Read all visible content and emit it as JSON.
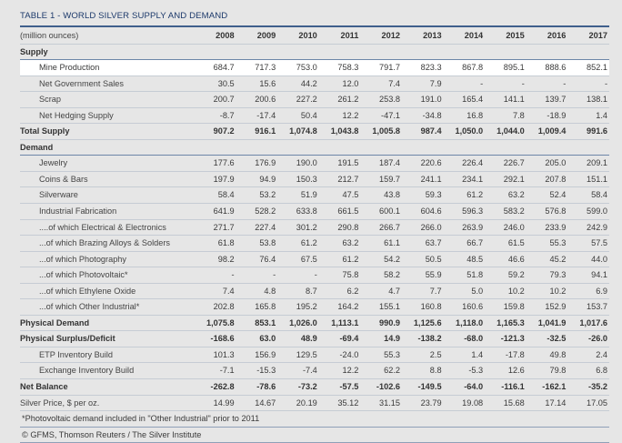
{
  "title": "TABLE 1 - WORLD SILVER SUPPLY AND DEMAND",
  "header": {
    "label": "(million ounces)",
    "years": [
      "2008",
      "2009",
      "2010",
      "2011",
      "2012",
      "2013",
      "2014",
      "2015",
      "2016",
      "2017"
    ]
  },
  "rows": [
    {
      "label": "Supply",
      "type": "sec",
      "values": []
    },
    {
      "label": "Mine Production",
      "type": "hi",
      "indent": true,
      "values": [
        "684.7",
        "717.3",
        "753.0",
        "758.3",
        "791.7",
        "823.3",
        "867.8",
        "895.1",
        "888.6",
        "852.1"
      ]
    },
    {
      "label": "Net Government Sales",
      "type": "plain",
      "indent": true,
      "values": [
        "30.5",
        "15.6",
        "44.2",
        "12.0",
        "7.4",
        "7.9",
        "-",
        "-",
        "-",
        "-"
      ]
    },
    {
      "label": "Scrap",
      "type": "plain",
      "indent": true,
      "values": [
        "200.7",
        "200.6",
        "227.2",
        "261.2",
        "253.8",
        "191.0",
        "165.4",
        "141.1",
        "139.7",
        "138.1"
      ]
    },
    {
      "label": "Net Hedging Supply",
      "type": "plain",
      "indent": true,
      "values": [
        "-8.7",
        "-17.4",
        "50.4",
        "12.2",
        "-47.1",
        "-34.8",
        "16.8",
        "7.8",
        "-18.9",
        "1.4"
      ]
    },
    {
      "label": "Total Supply",
      "type": "bold",
      "values": [
        "907.2",
        "916.1",
        "1,074.8",
        "1,043.8",
        "1,005.8",
        "987.4",
        "1,050.0",
        "1,044.0",
        "1,009.4",
        "991.6"
      ]
    },
    {
      "label": "Demand",
      "type": "sec",
      "values": []
    },
    {
      "label": "Jewelry",
      "type": "plain",
      "indent": true,
      "values": [
        "177.6",
        "176.9",
        "190.0",
        "191.5",
        "187.4",
        "220.6",
        "226.4",
        "226.7",
        "205.0",
        "209.1"
      ]
    },
    {
      "label": "Coins & Bars",
      "type": "plain",
      "indent": true,
      "values": [
        "197.9",
        "94.9",
        "150.3",
        "212.7",
        "159.7",
        "241.1",
        "234.1",
        "292.1",
        "207.8",
        "151.1"
      ]
    },
    {
      "label": "Silverware",
      "type": "plain",
      "indent": true,
      "values": [
        "58.4",
        "53.2",
        "51.9",
        "47.5",
        "43.8",
        "59.3",
        "61.2",
        "63.2",
        "52.4",
        "58.4"
      ]
    },
    {
      "label": "Industrial Fabrication",
      "type": "plain",
      "indent": true,
      "values": [
        "641.9",
        "528.2",
        "633.8",
        "661.5",
        "600.1",
        "604.6",
        "596.3",
        "583.2",
        "576.8",
        "599.0"
      ]
    },
    {
      "label": "....of which Electrical & Electronics",
      "type": "plain",
      "indent": true,
      "values": [
        "271.7",
        "227.4",
        "301.2",
        "290.8",
        "266.7",
        "266.0",
        "263.9",
        "246.0",
        "233.9",
        "242.9"
      ]
    },
    {
      "label": "...of which Brazing Alloys & Solders",
      "type": "plain",
      "indent": true,
      "values": [
        "61.8",
        "53.8",
        "61.2",
        "63.2",
        "61.1",
        "63.7",
        "66.7",
        "61.5",
        "55.3",
        "57.5"
      ]
    },
    {
      "label": "...of which Photography",
      "type": "plain",
      "indent": true,
      "values": [
        "98.2",
        "76.4",
        "67.5",
        "61.2",
        "54.2",
        "50.5",
        "48.5",
        "46.6",
        "45.2",
        "44.0"
      ]
    },
    {
      "label": "...of which Photovoltaic*",
      "type": "plain",
      "indent": true,
      "values": [
        "-",
        "-",
        "-",
        "75.8",
        "58.2",
        "55.9",
        "51.8",
        "59.2",
        "79.3",
        "94.1"
      ]
    },
    {
      "label": "...of which Ethylene Oxide",
      "type": "plain",
      "indent": true,
      "values": [
        "7.4",
        "4.8",
        "8.7",
        "6.2",
        "4.7",
        "7.7",
        "5.0",
        "10.2",
        "10.2",
        "6.9"
      ]
    },
    {
      "label": "...of which Other Industrial*",
      "type": "plain",
      "indent": true,
      "values": [
        "202.8",
        "165.8",
        "195.2",
        "164.2",
        "155.1",
        "160.8",
        "160.6",
        "159.8",
        "152.9",
        "153.7"
      ]
    },
    {
      "label": "Physical Demand",
      "type": "bold",
      "values": [
        "1,075.8",
        "853.1",
        "1,026.0",
        "1,113.1",
        "990.9",
        "1,125.6",
        "1,118.0",
        "1,165.3",
        "1,041.9",
        "1,017.6"
      ]
    },
    {
      "label": "Physical Surplus/Deficit",
      "type": "bold",
      "values": [
        "-168.6",
        "63.0",
        "48.9",
        "-69.4",
        "14.9",
        "-138.2",
        "-68.0",
        "-121.3",
        "-32.5",
        "-26.0"
      ]
    },
    {
      "label": "ETP Inventory Build",
      "type": "plain",
      "indent": true,
      "values": [
        "101.3",
        "156.9",
        "129.5",
        "-24.0",
        "55.3",
        "2.5",
        "1.4",
        "-17.8",
        "49.8",
        "2.4"
      ]
    },
    {
      "label": "Exchange Inventory Build",
      "type": "plain",
      "indent": true,
      "values": [
        "-7.1",
        "-15.3",
        "-7.4",
        "12.2",
        "62.2",
        "8.8",
        "-5.3",
        "12.6",
        "79.8",
        "6.8"
      ]
    },
    {
      "label": "Net Balance",
      "type": "bold",
      "values": [
        "-262.8",
        "-78.6",
        "-73.2",
        "-57.5",
        "-102.6",
        "-149.5",
        "-64.0",
        "-116.1",
        "-162.1",
        "-35.2"
      ]
    },
    {
      "label": "Silver Price, $ per oz.",
      "type": "plain",
      "values": [
        "14.99",
        "14.67",
        "20.19",
        "35.12",
        "31.15",
        "23.79",
        "19.08",
        "15.68",
        "17.14",
        "17.05"
      ]
    }
  ],
  "footnote": "*Photovoltaic demand included in \"Other Industrial\" prior to 2011",
  "source": "© GFMS, Thomson Reuters / The Silver Institute"
}
